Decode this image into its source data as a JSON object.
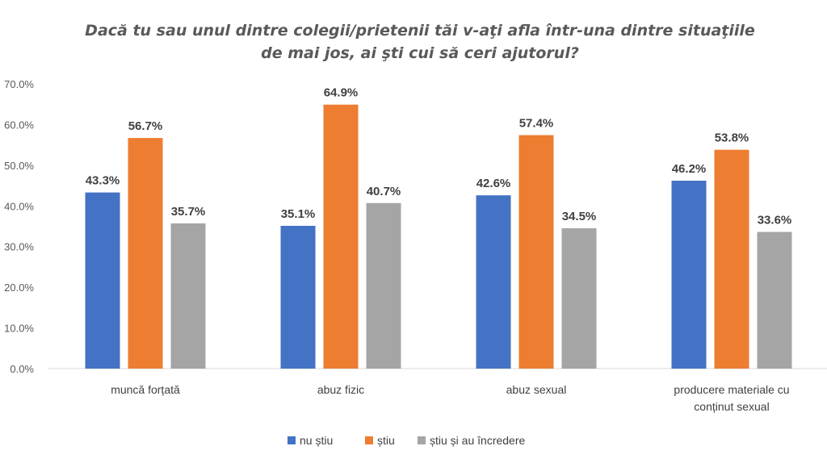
{
  "chart_data": {
    "type": "bar",
    "title": [
      "Dacă tu sau unul dintre colegii/prietenii tăi v-aţi afla într-una dintre situaţiile",
      "de mai jos, ai şti cui să ceri ajutorul?"
    ],
    "xlabel": "",
    "ylabel": "",
    "ylim": [
      0,
      70
    ],
    "yticks": [
      "0.0%",
      "10.0%",
      "20.0%",
      "30.0%",
      "40.0%",
      "50.0%",
      "60.0%",
      "70.0%"
    ],
    "grid": false,
    "legend_position": "bottom",
    "categories": [
      [
        "muncă forțată"
      ],
      [
        "abuz fizic"
      ],
      [
        "abuz sexual"
      ],
      [
        "producere materiale cu",
        "conținut sexual"
      ]
    ],
    "series": [
      {
        "name": "nu știu",
        "color": "#4472C4",
        "values": [
          43.3,
          35.1,
          42.6,
          46.2
        ],
        "labels": [
          "43.3%",
          "35.1%",
          "42.6%",
          "46.2%"
        ]
      },
      {
        "name": "știu",
        "color": "#ED7D31",
        "values": [
          56.7,
          64.9,
          57.4,
          53.8
        ],
        "labels": [
          "56.7%",
          "64.9%",
          "57.4%",
          "53.8%"
        ]
      },
      {
        "name": "știu și au încredere",
        "color": "#A5A5A5",
        "values": [
          35.7,
          40.7,
          34.5,
          33.6
        ],
        "labels": [
          "35.7%",
          "40.7%",
          "34.5%",
          "33.6%"
        ]
      }
    ]
  }
}
